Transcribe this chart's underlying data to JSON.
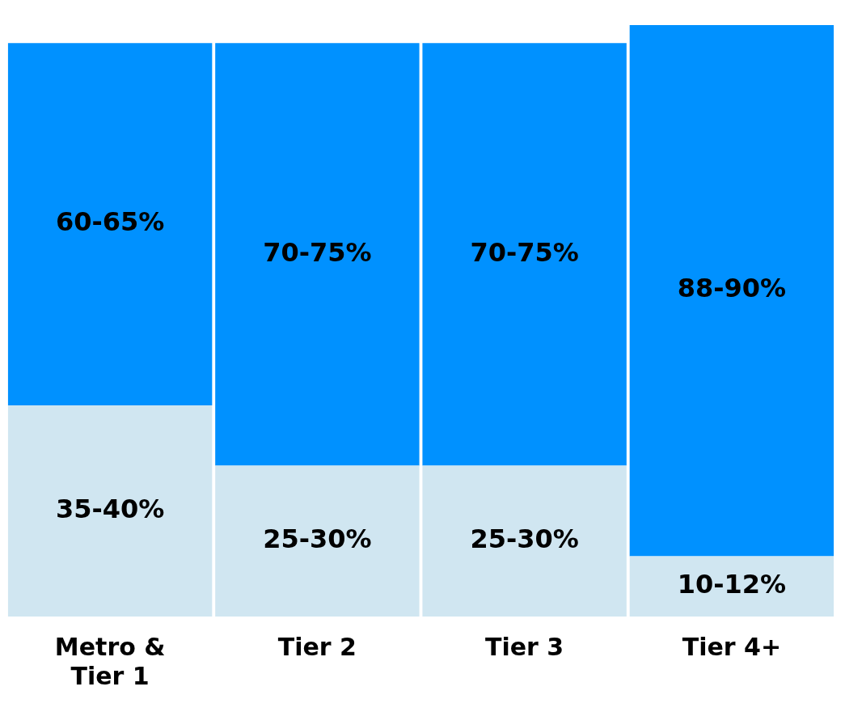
{
  "chart_data": {
    "type": "bar",
    "stacked": true,
    "categories": [
      "Metro & Tier 1",
      "Tier 2",
      "Tier 3",
      "Tier 4+"
    ],
    "series": [
      {
        "color": "#d0e6f1",
        "values": [
          35,
          25,
          25,
          10
        ],
        "value_labels": [
          "35-40%",
          "25-30%",
          "25-30%",
          "10-12%"
        ]
      },
      {
        "color": "#0091ff",
        "values": [
          60,
          70,
          70,
          88
        ],
        "value_labels": [
          "60-65%",
          "70-75%",
          "70-75%",
          "88-90%"
        ]
      }
    ],
    "grid": false,
    "legend": false
  }
}
